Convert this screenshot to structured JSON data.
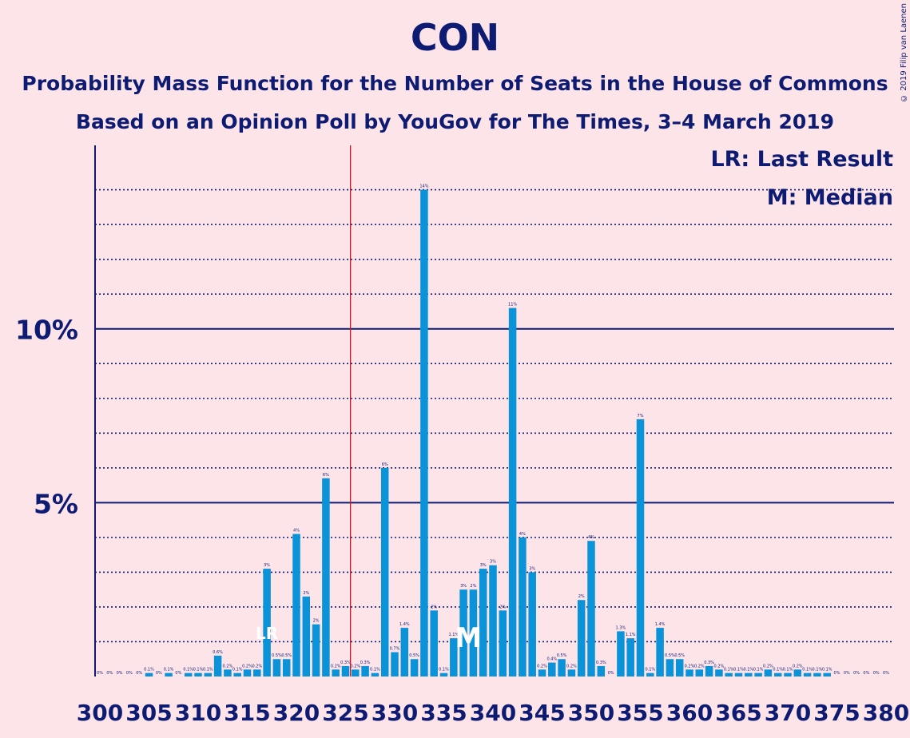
{
  "title": "CON",
  "subtitle_1": "Probability Mass Function for the Number of Seats in the House of Commons",
  "subtitle_2": "Based on an Opinion Poll by YouGov for The Times, 3–4 March 2019",
  "copyright": "© 2019 Filip van Laenen",
  "legend": {
    "lr": "LR: Last Result",
    "m": "M: Median"
  },
  "colors": {
    "bar": "#0b93d9",
    "text": "#0d1b73",
    "last_result_line": "#d9141b",
    "background": "#fde4e8"
  },
  "chart_data": {
    "type": "bar",
    "x": [
      300,
      301,
      302,
      303,
      304,
      305,
      306,
      307,
      308,
      309,
      310,
      311,
      312,
      313,
      314,
      315,
      316,
      317,
      318,
      319,
      320,
      321,
      322,
      323,
      324,
      325,
      326,
      327,
      328,
      329,
      330,
      331,
      332,
      333,
      334,
      335,
      336,
      337,
      338,
      339,
      340,
      341,
      342,
      343,
      344,
      345,
      346,
      347,
      348,
      349,
      350,
      351,
      352,
      353,
      354,
      355,
      356,
      357,
      358,
      359,
      360,
      361,
      362,
      363,
      364,
      365,
      366,
      367,
      368,
      369,
      370,
      371,
      372,
      373,
      374,
      375,
      376,
      377,
      378,
      379,
      380
    ],
    "values": [
      0,
      0,
      0,
      0,
      0,
      0.1,
      0,
      0.1,
      0,
      0.1,
      0.1,
      0.1,
      0.6,
      0.2,
      0.1,
      0.2,
      0.2,
      3.1,
      0.5,
      0.5,
      4.1,
      2.3,
      1.5,
      5.7,
      0.2,
      0.3,
      0.2,
      0.3,
      0.1,
      6.0,
      0.7,
      1.4,
      0.5,
      14.0,
      1.9,
      0.1,
      1.1,
      2.5,
      2.5,
      3.1,
      3.2,
      1.9,
      10.6,
      4.0,
      3.0,
      0.2,
      0.4,
      0.5,
      0.2,
      2.2,
      3.9,
      0.3,
      0,
      1.3,
      1.1,
      7.4,
      0.1,
      1.4,
      0.5,
      0.5,
      0.2,
      0.2,
      0.3,
      0.2,
      0.1,
      0.1,
      0.1,
      0.1,
      0.2,
      0.1,
      0.1,
      0.2,
      0.1,
      0.1,
      0.1,
      0,
      0,
      0,
      0,
      0,
      0
    ],
    "labels": [
      "0%",
      "0%",
      "0%",
      "0%",
      "0%",
      "0.1%",
      "0%",
      "0.1%",
      "0%",
      "0.1%",
      "0.1%",
      "0.1%",
      "0.6%",
      "0.2%",
      "0.1%",
      "0.2%",
      "0.2%",
      "3%",
      "0.5%",
      "0.5%",
      "4%",
      "2%",
      "2%",
      "6%",
      "0.2%",
      "0.3%",
      "0.2%",
      "0.3%",
      "0.1%",
      "6%",
      "0.7%",
      "1.4%",
      "0.5%",
      "14%",
      "2%",
      "0.1%",
      "1.1%",
      "3%",
      "2%",
      "3%",
      "3%",
      "2%",
      "11%",
      "4%",
      "3%",
      "0.2%",
      "0.4%",
      "0.5%",
      "0.2%",
      "2%",
      "4%",
      "0.3%",
      "0%",
      "1.3%",
      "1.1%",
      "7%",
      "0.1%",
      "1.4%",
      "0.5%",
      "0.5%",
      "0.2%",
      "0.2%",
      "0.3%",
      "0.2%",
      "0.1%",
      "0.1%",
      "0.1%",
      "0.1%",
      "0.2%",
      "0.1%",
      "0.1%",
      "0.2%",
      "0.1%",
      "0.1%",
      "0.1%",
      "0%",
      "0%",
      "0%",
      "0%",
      "0%",
      "0%"
    ],
    "x_tick_labels": [
      "300",
      "305",
      "310",
      "315",
      "320",
      "325",
      "330",
      "335",
      "340",
      "345",
      "350",
      "355",
      "360",
      "365",
      "370",
      "375",
      "380"
    ],
    "y_tick_labels": [
      "5%",
      "10%"
    ],
    "ylim": [
      0,
      15
    ],
    "last_result_seat": 317,
    "last_result_marker": "LR",
    "median_seat": 338,
    "median_marker": "M",
    "majority_line_seat": 326,
    "grid": "dotted every 1%, solid at 5% and 10%"
  }
}
